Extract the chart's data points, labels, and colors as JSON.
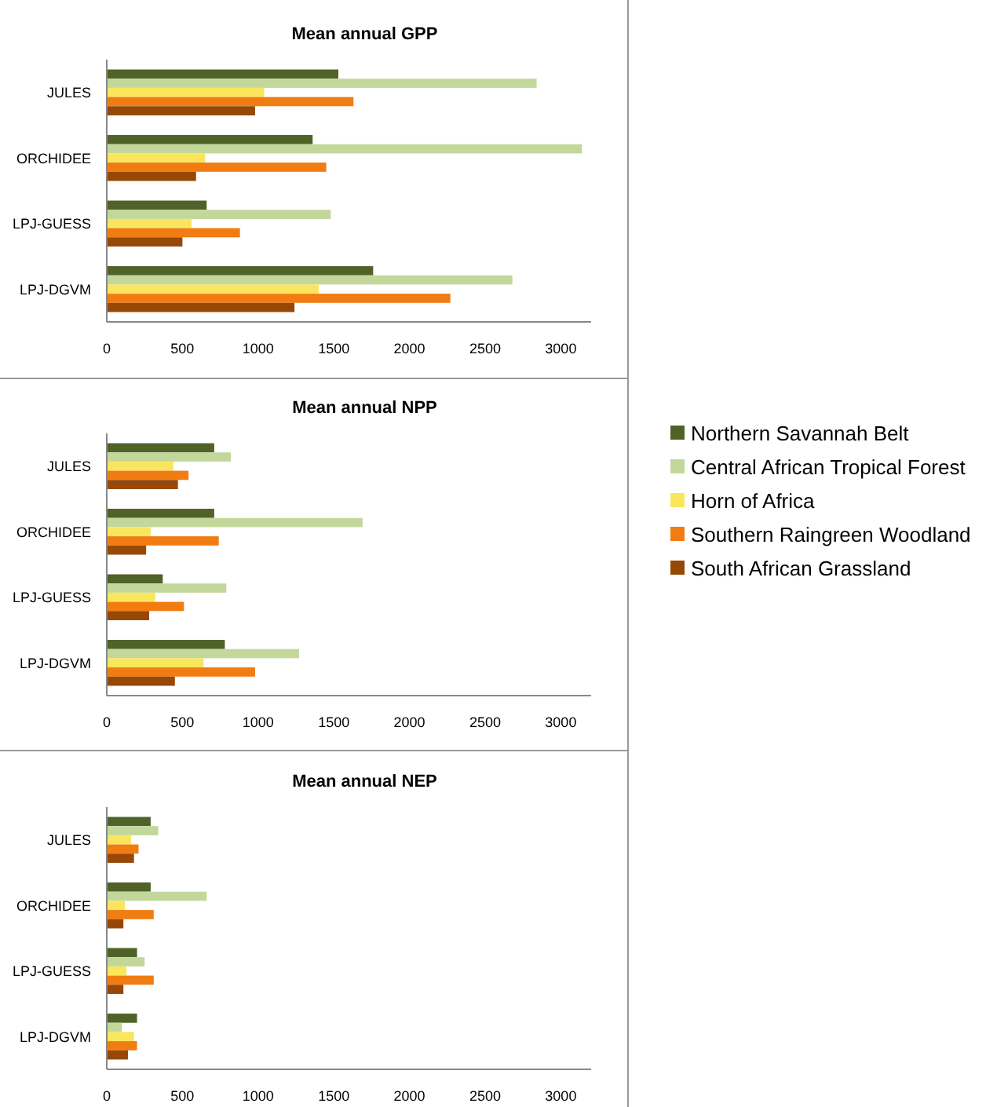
{
  "chart_data": [
    {
      "type": "bar",
      "orientation": "horizontal",
      "title": "Mean annual GPP",
      "categories": [
        "JULES",
        "ORCHIDEE",
        "LPJ-GUESS",
        "LPJ-DGVM"
      ],
      "xlim": [
        0,
        3200
      ],
      "xticks": [
        0,
        500,
        1000,
        1500,
        2000,
        2500,
        3000
      ],
      "grid": false,
      "legend": false,
      "series": [
        {
          "color": "#4f6228",
          "values": [
            1530,
            1360,
            660,
            1760
          ]
        },
        {
          "color": "#c4d79b",
          "values": [
            2840,
            3140,
            1480,
            2680
          ]
        },
        {
          "color": "#f9e65c",
          "values": [
            1040,
            650,
            560,
            1400
          ]
        },
        {
          "color": "#f07c12",
          "values": [
            1630,
            1450,
            880,
            2270
          ]
        },
        {
          "color": "#974806",
          "values": [
            980,
            590,
            500,
            1240
          ]
        }
      ]
    },
    {
      "type": "bar",
      "orientation": "horizontal",
      "title": "Mean annual NPP",
      "categories": [
        "JULES",
        "ORCHIDEE",
        "LPJ-GUESS",
        "LPJ-DGVM"
      ],
      "xlim": [
        0,
        3200
      ],
      "xticks": [
        0,
        500,
        1000,
        1500,
        2000,
        2500,
        3000
      ],
      "grid": false,
      "legend": "right",
      "series": [
        {
          "name": "Northern Savannah Belt",
          "color": "#4f6228",
          "values": [
            710,
            710,
            370,
            780
          ]
        },
        {
          "name": "Central African Tropical Forest",
          "color": "#c4d79b",
          "values": [
            820,
            1690,
            790,
            1270
          ]
        },
        {
          "name": "Horn of Africa",
          "color": "#f9e65c",
          "values": [
            440,
            290,
            320,
            640
          ]
        },
        {
          "name": "Southern Raingreen Woodland",
          "color": "#f07c12",
          "values": [
            540,
            740,
            510,
            980
          ]
        },
        {
          "name": "South African Grassland",
          "color": "#974806",
          "values": [
            470,
            260,
            280,
            450
          ]
        }
      ]
    },
    {
      "type": "bar",
      "orientation": "horizontal",
      "title": "Mean annual NEP",
      "categories": [
        "JULES",
        "ORCHIDEE",
        "LPJ-GUESS",
        "LPJ-DGVM"
      ],
      "xlim": [
        0,
        3200
      ],
      "xticks": [
        0,
        500,
        1000,
        1500,
        2000,
        2500,
        3000
      ],
      "grid": false,
      "legend": false,
      "series": [
        {
          "color": "#4f6228",
          "values": [
            290,
            290,
            200,
            200
          ]
        },
        {
          "color": "#c4d79b",
          "values": [
            340,
            660,
            250,
            100
          ]
        },
        {
          "color": "#f9e65c",
          "values": [
            160,
            120,
            130,
            180
          ]
        },
        {
          "color": "#f07c12",
          "values": [
            210,
            310,
            310,
            200
          ]
        },
        {
          "color": "#974806",
          "values": [
            180,
            110,
            110,
            140
          ]
        }
      ]
    }
  ]
}
